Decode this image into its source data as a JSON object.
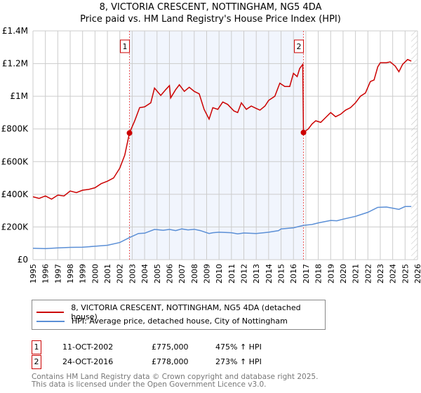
{
  "chart_data": {
    "type": "line",
    "title": "8, VICTORIA CRESCENT, NOTTINGHAM, NG5 4DA",
    "subtitle": "Price paid vs. HM Land Registry's House Price Index (HPI)",
    "xlim": [
      1995,
      2026
    ],
    "ylim": [
      0,
      1400000
    ],
    "yticks": [
      {
        "v": 0,
        "label": "£0"
      },
      {
        "v": 200000,
        "label": "£200K"
      },
      {
        "v": 400000,
        "label": "£400K"
      },
      {
        "v": 600000,
        "label": "£600K"
      },
      {
        "v": 800000,
        "label": "£800K"
      },
      {
        "v": 1000000,
        "label": "£1M"
      },
      {
        "v": 1200000,
        "label": "£1.2M"
      },
      {
        "v": 1400000,
        "label": "£1.4M"
      }
    ],
    "xticks": [
      "1995",
      "1996",
      "1997",
      "1998",
      "1999",
      "2000",
      "2001",
      "2002",
      "2003",
      "2004",
      "2005",
      "2006",
      "2007",
      "2008",
      "2009",
      "2010",
      "2011",
      "2012",
      "2013",
      "2014",
      "2015",
      "2016",
      "2017",
      "2018",
      "2019",
      "2020",
      "2021",
      "2022",
      "2023",
      "2024",
      "2025",
      "2026"
    ],
    "grid": true,
    "shaded_range": [
      2002.78,
      2016.81
    ],
    "forecast_hatch_from": 2025.5,
    "series": [
      {
        "name": "8, VICTORIA CRESCENT, NOTTINGHAM, NG5 4DA (detached house)",
        "color": "#cc0000",
        "x": [
          1995,
          1995.5,
          1996,
          1996.5,
          1997,
          1997.5,
          1998,
          1998.5,
          1999,
          1999.5,
          2000,
          2000.5,
          2001,
          2001.5,
          2002,
          2002.4,
          2002.78,
          2003.2,
          2003.6,
          2004,
          2004.5,
          2004.8,
          2005.3,
          2005.7,
          2006,
          2006.1,
          2006.5,
          2006.8,
          2007.2,
          2007.6,
          2008,
          2008.4,
          2008.8,
          2009.2,
          2009.5,
          2009.9,
          2010.3,
          2010.7,
          2011.2,
          2011.5,
          2011.8,
          2012.2,
          2012.6,
          2013,
          2013.3,
          2013.7,
          2014,
          2014.5,
          2014.9,
          2015.3,
          2015.7,
          2016,
          2016.3,
          2016.5,
          2016.75,
          2016.81,
          2017.2,
          2017.5,
          2017.8,
          2018.2,
          2018.6,
          2019,
          2019.4,
          2019.8,
          2020.2,
          2020.6,
          2021,
          2021.4,
          2021.8,
          2022.2,
          2022.5,
          2022.8,
          2023,
          2023.5,
          2023.8,
          2024.2,
          2024.5,
          2024.8,
          2025.2,
          2025.5
        ],
        "y": [
          385000,
          375000,
          390000,
          370000,
          395000,
          390000,
          420000,
          410000,
          425000,
          430000,
          440000,
          465000,
          480000,
          500000,
          560000,
          640000,
          775000,
          850000,
          930000,
          935000,
          960000,
          1050000,
          1005000,
          1040000,
          1065000,
          990000,
          1040000,
          1070000,
          1030000,
          1055000,
          1030000,
          1015000,
          920000,
          860000,
          930000,
          920000,
          965000,
          950000,
          910000,
          900000,
          960000,
          920000,
          940000,
          925000,
          915000,
          940000,
          975000,
          1000000,
          1080000,
          1060000,
          1060000,
          1140000,
          1120000,
          1170000,
          1195000,
          778000,
          800000,
          830000,
          850000,
          840000,
          870000,
          900000,
          875000,
          890000,
          915000,
          930000,
          960000,
          1000000,
          1020000,
          1090000,
          1100000,
          1180000,
          1205000,
          1205000,
          1210000,
          1185000,
          1150000,
          1195000,
          1225000,
          1215000
        ]
      },
      {
        "name": "HPI: Average price, detached house, City of Nottingham",
        "color": "#5b8fd6",
        "x": [
          1995,
          1996,
          1997,
          1998,
          1999,
          2000,
          2001,
          2002,
          2002.78,
          2003.5,
          2004,
          2004.8,
          2005.5,
          2006,
          2006.5,
          2007,
          2007.5,
          2008,
          2008.5,
          2009.2,
          2009.5,
          2010,
          2011,
          2011.5,
          2012,
          2013,
          2014,
          2014.8,
          2015,
          2016,
          2016.81,
          2017.5,
          2018,
          2019,
          2019.5,
          2020,
          2021,
          2022,
          2022.8,
          2023.5,
          2024,
          2024.5,
          2025,
          2025.5
        ],
        "y": [
          70000,
          68000,
          72000,
          75000,
          76000,
          82000,
          88000,
          105000,
          135000,
          160000,
          162000,
          185000,
          180000,
          185000,
          178000,
          188000,
          182000,
          186000,
          178000,
          160000,
          165000,
          168000,
          165000,
          158000,
          163000,
          160000,
          168000,
          178000,
          188000,
          195000,
          210000,
          215000,
          225000,
          240000,
          238000,
          248000,
          265000,
          290000,
          320000,
          322000,
          315000,
          308000,
          325000,
          325000
        ]
      }
    ],
    "sales": [
      {
        "num": "1",
        "date": "11-OCT-2002",
        "x": 2002.78,
        "price": "£775,000",
        "value": 775000,
        "hpi": "475% ↑ HPI"
      },
      {
        "num": "2",
        "date": "24-OCT-2016",
        "x": 2016.81,
        "price": "£778,000",
        "value": 778000,
        "hpi": "273% ↑ HPI"
      }
    ]
  },
  "footer": {
    "line1": "Contains HM Land Registry data © Crown copyright and database right 2025.",
    "line2": "This data is licensed under the Open Government Licence v3.0."
  }
}
